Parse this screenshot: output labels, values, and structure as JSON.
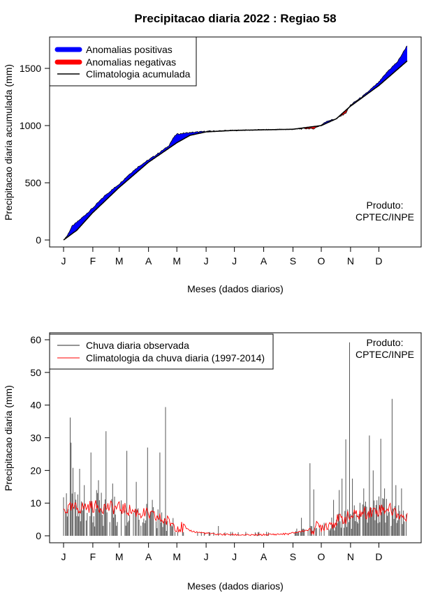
{
  "figure_title": "Precipitacao diaria 2022 : Regiao 58",
  "chart_data": [
    {
      "type": "area",
      "name": "accumulated-precipitation",
      "title": "Precipitacao diaria 2022 : Regiao 58",
      "xlabel": "Meses (dados diarios)",
      "ylabel": "Precipitacao diaria acumulada (mm)",
      "xlim": [
        1,
        365
      ],
      "ylim": [
        0,
        1700
      ],
      "yticks": [
        0,
        500,
        1000,
        1500
      ],
      "month_ticks": [
        "J",
        "F",
        "M",
        "A",
        "M",
        "J",
        "J",
        "A",
        "S",
        "O",
        "N",
        "D"
      ],
      "month_start_days": [
        1,
        32,
        60,
        91,
        121,
        152,
        182,
        213,
        244,
        274,
        305,
        335
      ],
      "credit": [
        "Produto:",
        "CPTEC/INPE"
      ],
      "legend": {
        "position": "top-left",
        "entries": [
          {
            "label": "Anomalias positivas",
            "color": "#0000ff"
          },
          {
            "label": "Anomalias negativas",
            "color": "#ff0000"
          },
          {
            "label": "Climatologia acumulada",
            "color": "#000000"
          }
        ]
      },
      "climatology_anchors": {
        "days": [
          1,
          15,
          32,
          60,
          91,
          121,
          135,
          152,
          182,
          213,
          244,
          274,
          290,
          305,
          335,
          365
        ],
        "values": [
          0,
          85,
          240,
          460,
          680,
          850,
          915,
          945,
          958,
          963,
          968,
          1000,
          1060,
          1170,
          1350,
          1565
        ]
      },
      "observed_anchors": {
        "days": [
          1,
          5,
          10,
          20,
          32,
          45,
          60,
          70,
          80,
          91,
          100,
          112,
          118,
          121,
          130,
          152,
          182,
          213,
          244,
          260,
          265,
          274,
          280,
          290,
          300,
          305,
          315,
          320,
          335,
          345,
          355,
          365
        ],
        "values": [
          0,
          40,
          120,
          190,
          280,
          390,
          490,
          570,
          640,
          700,
          750,
          820,
          900,
          925,
          935,
          950,
          958,
          963,
          968,
          975,
          970,
          1005,
          1040,
          1060,
          1110,
          1180,
          1240,
          1270,
          1380,
          1480,
          1560,
          1700
        ]
      }
    },
    {
      "type": "bar",
      "name": "daily-precipitation",
      "xlabel": "Meses (dados diarios)",
      "ylabel": "Precipitacao diaria (mm)",
      "xlim": [
        1,
        365
      ],
      "ylim": [
        0,
        60
      ],
      "yticks": [
        0,
        10,
        20,
        30,
        40,
        50,
        60
      ],
      "month_ticks": [
        "J",
        "F",
        "M",
        "A",
        "M",
        "J",
        "J",
        "A",
        "S",
        "O",
        "N",
        "D"
      ],
      "month_start_days": [
        1,
        32,
        60,
        91,
        121,
        152,
        182,
        213,
        244,
        274,
        305,
        335
      ],
      "credit": [
        "Produto:",
        "CPTEC/INPE"
      ],
      "legend": {
        "position": "top-left",
        "entries": [
          {
            "label": "Chuva diaria observada",
            "color": "#555555"
          },
          {
            "label": "Climatologia da chuva diaria (1997-2014)",
            "color": "#ff0000"
          }
        ]
      },
      "observed_peaks": [
        {
          "day": 8,
          "value": 36.2
        },
        {
          "day": 9,
          "value": 28.5
        },
        {
          "day": 4,
          "value": 13
        },
        {
          "day": 11,
          "value": 20.8
        },
        {
          "day": 18,
          "value": 20.5
        },
        {
          "day": 23,
          "value": 15.5
        },
        {
          "day": 30,
          "value": 25.5
        },
        {
          "day": 38,
          "value": 17
        },
        {
          "day": 46,
          "value": 32
        },
        {
          "day": 53,
          "value": 16
        },
        {
          "day": 68,
          "value": 26
        },
        {
          "day": 78,
          "value": 16.5
        },
        {
          "day": 90,
          "value": 27
        },
        {
          "day": 95,
          "value": 11
        },
        {
          "day": 103,
          "value": 25.5
        },
        {
          "day": 109,
          "value": 39.4
        },
        {
          "day": 115,
          "value": 3.2
        },
        {
          "day": 127,
          "value": 2.1
        },
        {
          "day": 165,
          "value": 3
        },
        {
          "day": 248,
          "value": 2.2
        },
        {
          "day": 253,
          "value": 5.5
        },
        {
          "day": 262,
          "value": 22.2
        },
        {
          "day": 266,
          "value": 14.2
        },
        {
          "day": 287,
          "value": 11
        },
        {
          "day": 293,
          "value": 14
        },
        {
          "day": 296,
          "value": 17.5
        },
        {
          "day": 300,
          "value": 29.5
        },
        {
          "day": 304,
          "value": 59.2
        },
        {
          "day": 307,
          "value": 17.5
        },
        {
          "day": 319,
          "value": 14.5
        },
        {
          "day": 325,
          "value": 30.7
        },
        {
          "day": 329,
          "value": 20
        },
        {
          "day": 337,
          "value": 29.7
        },
        {
          "day": 341,
          "value": 14.5
        },
        {
          "day": 349,
          "value": 41.9
        },
        {
          "day": 353,
          "value": 15.5
        },
        {
          "day": 359,
          "value": 14.5
        }
      ],
      "climatology_anchors": {
        "days": [
          1,
          30,
          60,
          90,
          115,
          125,
          140,
          160,
          200,
          240,
          260,
          280,
          300,
          320,
          345,
          365
        ],
        "values": [
          8,
          9,
          8.5,
          6.5,
          4,
          2.5,
          1.2,
          0.5,
          0.2,
          0.6,
          1.8,
          3.5,
          5.5,
          7,
          8.5,
          5
        ]
      }
    }
  ]
}
